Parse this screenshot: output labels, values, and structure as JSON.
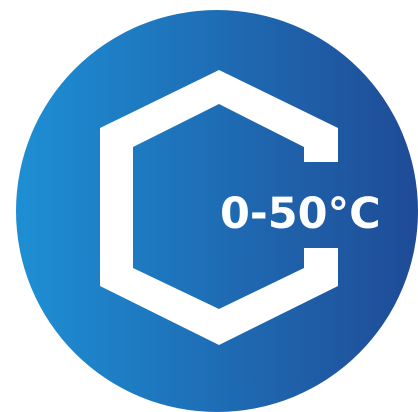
{
  "badge": {
    "temperature_range": "0-50°C",
    "icon": "hexagon-icon",
    "colors": {
      "gradient_start": "#1e8fd4",
      "gradient_end": "#1f4b96",
      "foreground": "#ffffff"
    }
  }
}
